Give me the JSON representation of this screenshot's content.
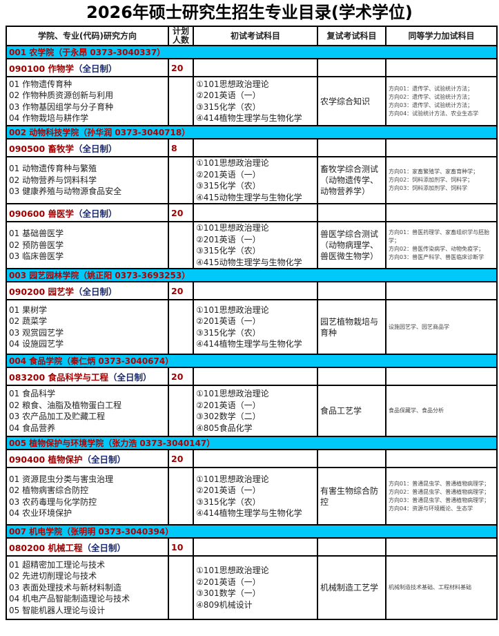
{
  "title": "2026年硕士研究生招生专业目录(学术学位)",
  "headers": [
    "学院、专业(代码)研究方向",
    "计划人数",
    "初试考试科目",
    "复试考试科目",
    "同等学力加试科目"
  ],
  "colors": {
    "college_bg": "#00c8f8",
    "college_text": "#b00000",
    "major_text": "#a00000",
    "fulltime_text": "#1a2a6c"
  },
  "colleges": [
    {
      "label": "001 农学院（于永昂 0373-3040337）",
      "majors": [
        {
          "code_name": "090100 作物学",
          "mode": "（全日制）",
          "quota": "20",
          "h": 71,
          "directions": [
            "01 作物遗传育种",
            "02 作物种质资源创新与利用",
            "03 作物基因组学与分子育种",
            "04 作物栽培与耕作学"
          ],
          "exams": [
            "①101思想政治理论",
            "②201英语（一）",
            "③315化学（农）",
            "④414植物生理学与生物化学"
          ],
          "retest": "农学综合知识",
          "extra": [
            "方向01：遗传学、试验统计方法；",
            "方向02：遗传学、试验统计方法；",
            "方向03：遗传学、试验统计方法；",
            "方向04：试验统计方法、农业生态学"
          ]
        }
      ]
    },
    {
      "label": "002 动物科技学院（孙华润 0373-3040718）",
      "majors": [
        {
          "code_name": "090500 畜牧学",
          "mode": "（全日制）",
          "quota": "8",
          "h": 65,
          "directions": [
            "01 动物遗传育种与繁殖",
            "02 动物营养与饲料科学",
            "03 健康养殖与动物源食品安全"
          ],
          "exams": [
            "①101思想政治理论",
            "②201英语（一）",
            "③315化学（农）",
            "④415动物生理学与生物化学"
          ],
          "retest": "畜牧学综合测试（动物遗传学、动物营养学）",
          "extra": [
            "方向01：家畜繁殖学、家畜育种学；",
            "方向02：饲料添加剂学、饲料学；",
            "方向03：饲料添加剂学、饲料学"
          ]
        },
        {
          "code_name": "090600 兽医学",
          "mode": "（全日制）",
          "quota": "20",
          "h": 66,
          "directions": [
            "01 基础兽医学",
            "02 预防兽医学",
            "03 临床兽医学"
          ],
          "exams": [
            "①101思想政治理论",
            "②201英语（一）",
            "③315化学（农）",
            "④415动物生理学与生物化学"
          ],
          "retest": "兽医学综合测试（动物病理学、兽医微生物学）",
          "extra": [
            "方向01：兽医药理学、家畜组织学与胚胎学；",
            "方向02：兽医传染病学、动物免疫学；",
            "方向03：兽医产科学、兽医临床诊断学"
          ]
        }
      ]
    },
    {
      "label": "003 园艺园林学院（姚正阳 0373-3693253）",
      "majors": [
        {
          "code_name": "090200 园艺学",
          "mode": "（全日制）",
          "quota": "20",
          "h": 79,
          "directions": [
            "01 果树学",
            "02 蔬菜学",
            "03 观赏园艺学",
            "04 设施园艺学"
          ],
          "exams": [
            "①101思想政治理论",
            "②201英语（一）",
            "③315化学（农）",
            "④414植物生理学与生物化学"
          ],
          "retest": "园艺植物栽培与育种",
          "extra": [
            "设施园艺学、园艺商品学"
          ]
        }
      ]
    },
    {
      "label": "004 食品学院（秦仁炳 0373-3040674）",
      "majors": [
        {
          "code_name": "083200 食品科学与工程",
          "mode": "（全日制）",
          "quota": "20",
          "h": 74,
          "directions": [
            "01 食品科学",
            "02 粮食、油脂及植物蛋白工程",
            "03 农产品加工及贮藏工程",
            "04 食品营养"
          ],
          "exams": [
            "①101思想政治理论",
            "②201英语（一）",
            "③302数学（二）",
            "④805食品化学"
          ],
          "retest": "食品工艺学",
          "extra": [
            "食品保藏学、食品分析"
          ]
        }
      ]
    },
    {
      "label": "005 植物保护与环境学院（张力浩 0373-3040147）",
      "majors": [
        {
          "code_name": "090400 植物保护",
          "mode": "（全日制）",
          "quota": "20",
          "h": 83,
          "directions": [
            "01 资源昆虫分类与害虫治理",
            "02 植物病害综合防控",
            "03 农药毒理与化学防控",
            "04 农业环境保护"
          ],
          "exams": [
            "①101思想政治理论",
            "②201英语（一）",
            "③315化学（农）",
            "④414植物生理学与生物化学"
          ],
          "retest": "有害生物综合防控",
          "extra": [
            "方向01：普通昆虫学、普通植物病理学；",
            "方向02：普通昆虫学、普通植物病理学；",
            "方向03：普通昆虫学、普通植物病理学；",
            "方向04：资源与环境概论、生态学"
          ]
        }
      ]
    },
    {
      "label": "007 机电学院（张明明 0373-3040394）",
      "majors": [
        {
          "code_name": "080200 机械工程",
          "mode": "（全日制）",
          "quota": "10",
          "h": 92,
          "directions": [
            "01 超精密加工理论与技术",
            "02 先进切削理论与技术",
            "03 表面处理技术与新材料制造",
            "04 机电产品智能制造理论与技术",
            "05 智能机器人理论与设计"
          ],
          "exams": [
            "①101思想政治理论",
            "②201英语（一）",
            "③301数学（一）",
            "④809机械设计"
          ],
          "retest": "机械制造工艺学",
          "extra": [
            "机械制造技术基础、工程材料基础"
          ]
        }
      ]
    }
  ]
}
